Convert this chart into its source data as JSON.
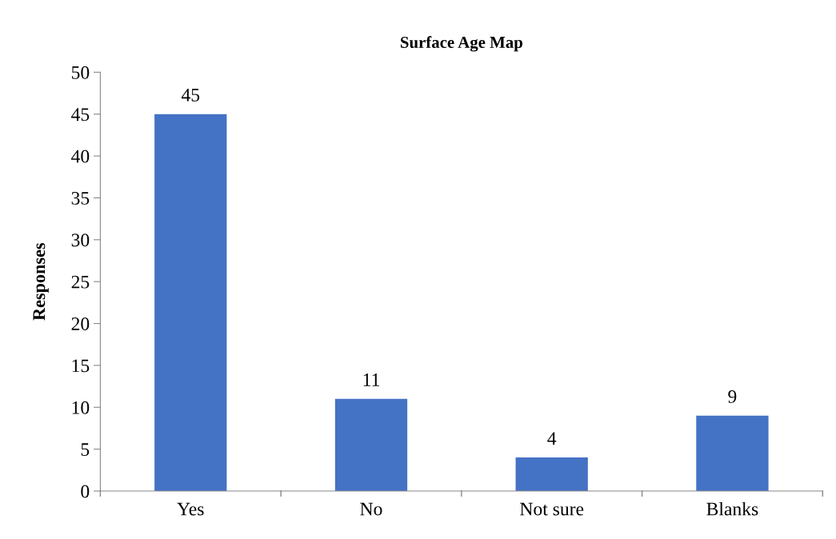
{
  "chart_data": {
    "type": "bar",
    "title": "Surface Age Map",
    "ylabel": "Responses",
    "categories": [
      "Yes",
      "No",
      "Not sure",
      "Blanks"
    ],
    "values": [
      45,
      11,
      4,
      9
    ],
    "color": "#4472c4",
    "ylim": [
      0,
      50
    ],
    "yticks": [
      0,
      5,
      10,
      15,
      20,
      25,
      30,
      35,
      40,
      45,
      50
    ],
    "data_labels": true,
    "grid": false,
    "legend": false
  }
}
